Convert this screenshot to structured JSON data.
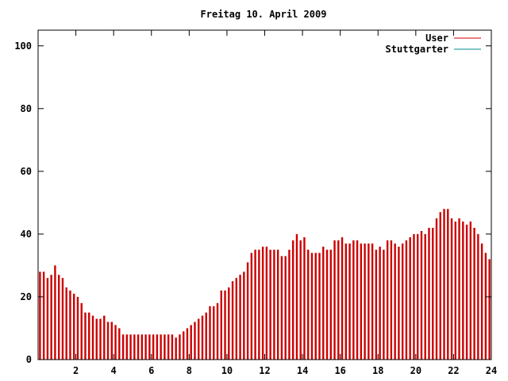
{
  "chart_data": {
    "type": "bar",
    "title": "Freitag 10. April 2009",
    "xlabel": "",
    "ylabel": "",
    "xlim": [
      0,
      24
    ],
    "ylim": [
      0,
      105
    ],
    "grid": false,
    "legend_position": "top-right",
    "x_ticks": [
      2,
      4,
      6,
      8,
      10,
      12,
      14,
      16,
      18,
      20,
      22,
      24
    ],
    "x_tick_labels": [
      "2",
      "4",
      "6",
      "8",
      "10",
      "12",
      "14",
      "16",
      "18",
      "20",
      "22",
      "24"
    ],
    "y_ticks": [
      0,
      20,
      40,
      60,
      80,
      100
    ],
    "y_tick_labels": [
      "0",
      "20",
      "40",
      "60",
      "80",
      "100"
    ],
    "series": [
      {
        "name": "User",
        "color": "#cc0000",
        "style": "impulses",
        "points": [
          [
            0.1,
            28
          ],
          [
            0.3,
            28
          ],
          [
            0.5,
            26
          ],
          [
            0.7,
            27
          ],
          [
            0.9,
            30
          ],
          [
            1.1,
            27
          ],
          [
            1.3,
            26
          ],
          [
            1.5,
            23
          ],
          [
            1.7,
            22
          ],
          [
            1.9,
            21
          ],
          [
            2.1,
            20
          ],
          [
            2.3,
            18
          ],
          [
            2.5,
            15
          ],
          [
            2.7,
            15
          ],
          [
            2.9,
            14
          ],
          [
            3.1,
            13
          ],
          [
            3.3,
            13
          ],
          [
            3.5,
            14
          ],
          [
            3.7,
            12
          ],
          [
            3.9,
            12
          ],
          [
            4.1,
            11
          ],
          [
            4.3,
            10
          ],
          [
            4.5,
            8
          ],
          [
            4.7,
            8
          ],
          [
            4.9,
            8
          ],
          [
            5.1,
            8
          ],
          [
            5.3,
            8
          ],
          [
            5.5,
            8
          ],
          [
            5.7,
            8
          ],
          [
            5.9,
            8
          ],
          [
            6.1,
            8
          ],
          [
            6.3,
            8
          ],
          [
            6.5,
            8
          ],
          [
            6.7,
            8
          ],
          [
            6.9,
            8
          ],
          [
            7.1,
            8
          ],
          [
            7.3,
            7
          ],
          [
            7.5,
            8
          ],
          [
            7.7,
            9
          ],
          [
            7.9,
            10
          ],
          [
            8.1,
            11
          ],
          [
            8.3,
            12
          ],
          [
            8.5,
            13
          ],
          [
            8.7,
            14
          ],
          [
            8.9,
            15
          ],
          [
            9.1,
            17
          ],
          [
            9.3,
            17
          ],
          [
            9.5,
            18
          ],
          [
            9.7,
            22
          ],
          [
            9.9,
            22
          ],
          [
            10.1,
            23
          ],
          [
            10.3,
            25
          ],
          [
            10.5,
            26
          ],
          [
            10.7,
            27
          ],
          [
            10.9,
            28
          ],
          [
            11.1,
            31
          ],
          [
            11.3,
            34
          ],
          [
            11.5,
            35
          ],
          [
            11.7,
            35
          ],
          [
            11.9,
            36
          ],
          [
            12.1,
            36
          ],
          [
            12.3,
            35
          ],
          [
            12.5,
            35
          ],
          [
            12.7,
            35
          ],
          [
            12.9,
            33
          ],
          [
            13.1,
            33
          ],
          [
            13.3,
            35
          ],
          [
            13.5,
            38
          ],
          [
            13.7,
            40
          ],
          [
            13.9,
            38
          ],
          [
            14.1,
            39
          ],
          [
            14.3,
            35
          ],
          [
            14.5,
            34
          ],
          [
            14.7,
            34
          ],
          [
            14.9,
            34
          ],
          [
            15.1,
            36
          ],
          [
            15.3,
            35
          ],
          [
            15.5,
            35
          ],
          [
            15.7,
            38
          ],
          [
            15.9,
            38
          ],
          [
            16.1,
            39
          ],
          [
            16.3,
            37
          ],
          [
            16.5,
            37
          ],
          [
            16.7,
            38
          ],
          [
            16.9,
            38
          ],
          [
            17.1,
            37
          ],
          [
            17.3,
            37
          ],
          [
            17.5,
            37
          ],
          [
            17.7,
            37
          ],
          [
            17.9,
            35
          ],
          [
            18.1,
            36
          ],
          [
            18.3,
            35
          ],
          [
            18.5,
            38
          ],
          [
            18.7,
            38
          ],
          [
            18.9,
            37
          ],
          [
            19.1,
            36
          ],
          [
            19.3,
            37
          ],
          [
            19.5,
            38
          ],
          [
            19.7,
            39
          ],
          [
            19.9,
            40
          ],
          [
            20.1,
            40
          ],
          [
            20.3,
            41
          ],
          [
            20.5,
            40
          ],
          [
            20.7,
            42
          ],
          [
            20.9,
            42
          ],
          [
            21.1,
            45
          ],
          [
            21.3,
            47
          ],
          [
            21.5,
            48
          ],
          [
            21.7,
            48
          ],
          [
            21.9,
            45
          ],
          [
            22.1,
            44
          ],
          [
            22.3,
            45
          ],
          [
            22.5,
            44
          ],
          [
            22.7,
            43
          ],
          [
            22.9,
            44
          ],
          [
            23.1,
            42
          ],
          [
            23.3,
            40
          ],
          [
            23.5,
            37
          ],
          [
            23.7,
            34
          ],
          [
            23.9,
            32
          ]
        ]
      },
      {
        "name": "Stuttgarter",
        "color": "#008b8b",
        "style": "line",
        "points": []
      }
    ]
  }
}
